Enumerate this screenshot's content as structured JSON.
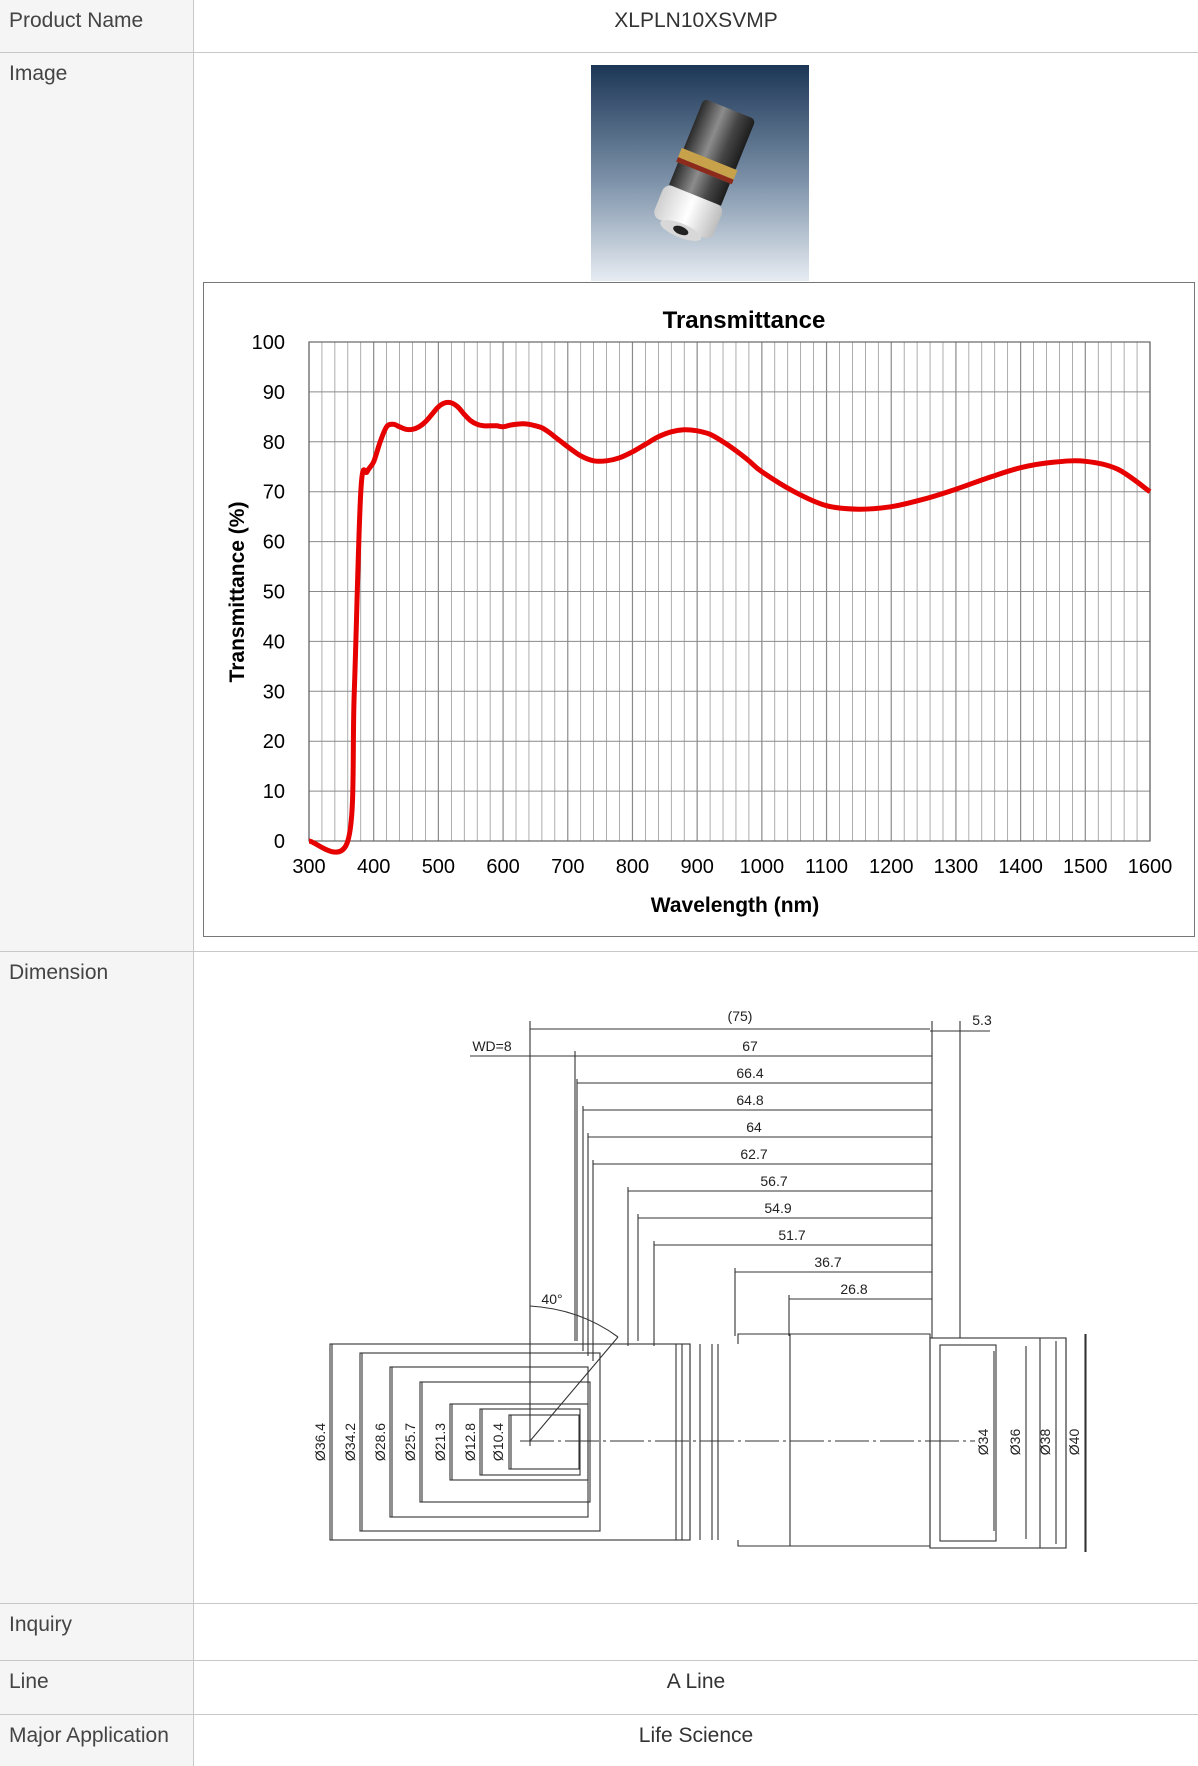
{
  "rows": {
    "product_name": {
      "label": "Product Name",
      "value": "XLPLN10XSVMP"
    },
    "image": {
      "label": "Image"
    },
    "dimension": {
      "label": "Dimension"
    },
    "inquiry": {
      "label": "Inquiry",
      "value": ""
    },
    "line": {
      "label": "Line",
      "value": "A Line"
    },
    "major_application": {
      "label": "Major Application",
      "value": "Life Science"
    }
  },
  "chart_data": {
    "type": "line",
    "title": "Transmittance",
    "xlabel": "Wavelength (nm)",
    "ylabel": "Transmittance (%)",
    "xlim": [
      300,
      1600
    ],
    "ylim": [
      0,
      100
    ],
    "xticks": [
      300,
      400,
      500,
      600,
      700,
      800,
      900,
      1000,
      1100,
      1200,
      1300,
      1400,
      1500,
      1600
    ],
    "yticks": [
      0,
      10,
      20,
      30,
      40,
      50,
      60,
      70,
      80,
      90,
      100
    ],
    "grid": true,
    "series": [
      {
        "color": "#e60000",
        "x": [
          300,
          360,
          370,
          380,
          390,
          400,
          410,
          420,
          430,
          440,
          450,
          460,
          470,
          480,
          490,
          500,
          510,
          520,
          530,
          540,
          550,
          560,
          570,
          580,
          590,
          600,
          610,
          620,
          630,
          640,
          650,
          660,
          670,
          680,
          690,
          700,
          720,
          740,
          760,
          780,
          800,
          820,
          840,
          860,
          880,
          900,
          920,
          940,
          960,
          980,
          1000,
          1050,
          1100,
          1150,
          1200,
          1250,
          1300,
          1350,
          1400,
          1450,
          1500,
          1550,
          1600
        ],
        "y": [
          0,
          0,
          30,
          70,
          74,
          76,
          80,
          83,
          83.5,
          83,
          82.5,
          82.5,
          83,
          84,
          85.5,
          87,
          87.8,
          87.8,
          87,
          85.5,
          84.2,
          83.5,
          83.2,
          83.2,
          83.2,
          83,
          83.3,
          83.5,
          83.6,
          83.5,
          83.2,
          82.8,
          82,
          81,
          80,
          79,
          77.2,
          76.2,
          76.2,
          76.8,
          78,
          79.5,
          81,
          82,
          82.4,
          82.2,
          81.5,
          80,
          78.2,
          76.2,
          74,
          70,
          67.2,
          66.5,
          67,
          68.5,
          70.5,
          72.8,
          74.8,
          75.9,
          76.1,
          74.5,
          70
        ]
      }
    ]
  },
  "dimension_drawing": {
    "lengths": [
      "(75)",
      "5.3",
      "WD=8",
      "67",
      "66.4",
      "64.8",
      "64",
      "62.7",
      "56.7",
      "54.9",
      "51.7",
      "36.7",
      "26.8"
    ],
    "angle": "40°",
    "diameters_left": [
      "Ø36.4",
      "Ø34.2",
      "Ø28.6",
      "Ø25.7",
      "Ø21.3",
      "Ø12.8",
      "Ø10.4"
    ],
    "diameters_right": [
      "Ø34",
      "Ø36",
      "Ø38",
      "Ø40"
    ]
  }
}
